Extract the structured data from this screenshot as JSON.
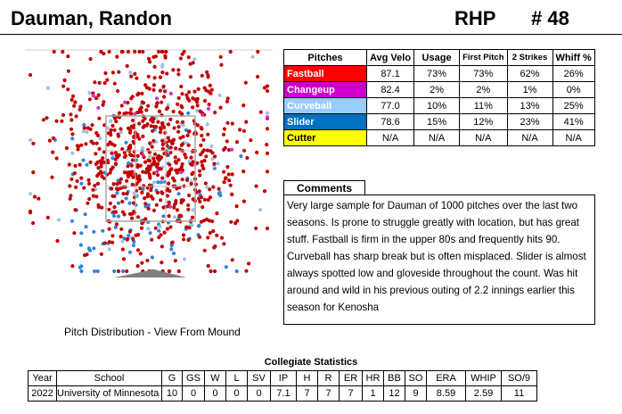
{
  "header": {
    "name": "Dauman, Randon",
    "hand": "RHP",
    "number": "# 48"
  },
  "plot": {
    "caption": "Pitch Distribution - View From Mound"
  },
  "pitch_table": {
    "headers": [
      "Pitches",
      "Avg Velo",
      "Usage",
      "First Pitch",
      "2 Strikes",
      "Whiff %"
    ],
    "rows": [
      {
        "name": "Fastball",
        "color": "#ff0000",
        "text_color": "#ffffff",
        "cells": [
          "87.1",
          "73%",
          "73%",
          "62%",
          "26%"
        ]
      },
      {
        "name": "Changeup",
        "color": "#cc00cc",
        "text_color": "#ffffff",
        "cells": [
          "82.4",
          "2%",
          "2%",
          "1%",
          "0%"
        ]
      },
      {
        "name": "Curveball",
        "color": "#99ccff",
        "text_color": "#ffffff",
        "cells": [
          "77.0",
          "10%",
          "11%",
          "13%",
          "25%"
        ]
      },
      {
        "name": "Slider",
        "color": "#0070c0",
        "text_color": "#ffffff",
        "cells": [
          "78.6",
          "15%",
          "12%",
          "23%",
          "41%"
        ]
      },
      {
        "name": "Cutter",
        "color": "#ffff00",
        "text_color": "#000000",
        "cells": [
          "N/A",
          "N/A",
          "N/A",
          "N/A",
          "N/A"
        ]
      }
    ]
  },
  "comments": {
    "title": "Comments",
    "text": "Very large sample for Dauman of 1000 pitches over the last two seasons. Is prone to struggle greatly with location, but has great stuff. Fastball is firm in the upper 80s and frequently hits 90. Curveball has sharp break but is often misplaced. Slider is almost always spotted low and gloveside throughout the count. Was hit around and wild in his previous outing of 2.2 innings earlier this season for Kenosha"
  },
  "stats": {
    "title": "Collegiate Statistics",
    "headers": [
      "Year",
      "School",
      "G",
      "GS",
      "W",
      "L",
      "SV",
      "IP",
      "H",
      "R",
      "ER",
      "HR",
      "BB",
      "SO",
      "ERA",
      "WHIP",
      "SO/9"
    ],
    "rows": [
      [
        "2022",
        "University of Minnesota",
        "10",
        "0",
        "0",
        "0",
        "0",
        "7.1",
        "7",
        "7",
        "7",
        "1",
        "12",
        "9",
        "8.59",
        "2.59",
        "11"
      ]
    ]
  },
  "colors": {
    "fastball": "#c00000",
    "curveball": "#9dc3e6",
    "slider": "#2e86de",
    "changeup": "#cc33cc",
    "zone": "#a6a6a6",
    "mound": "#808080"
  }
}
